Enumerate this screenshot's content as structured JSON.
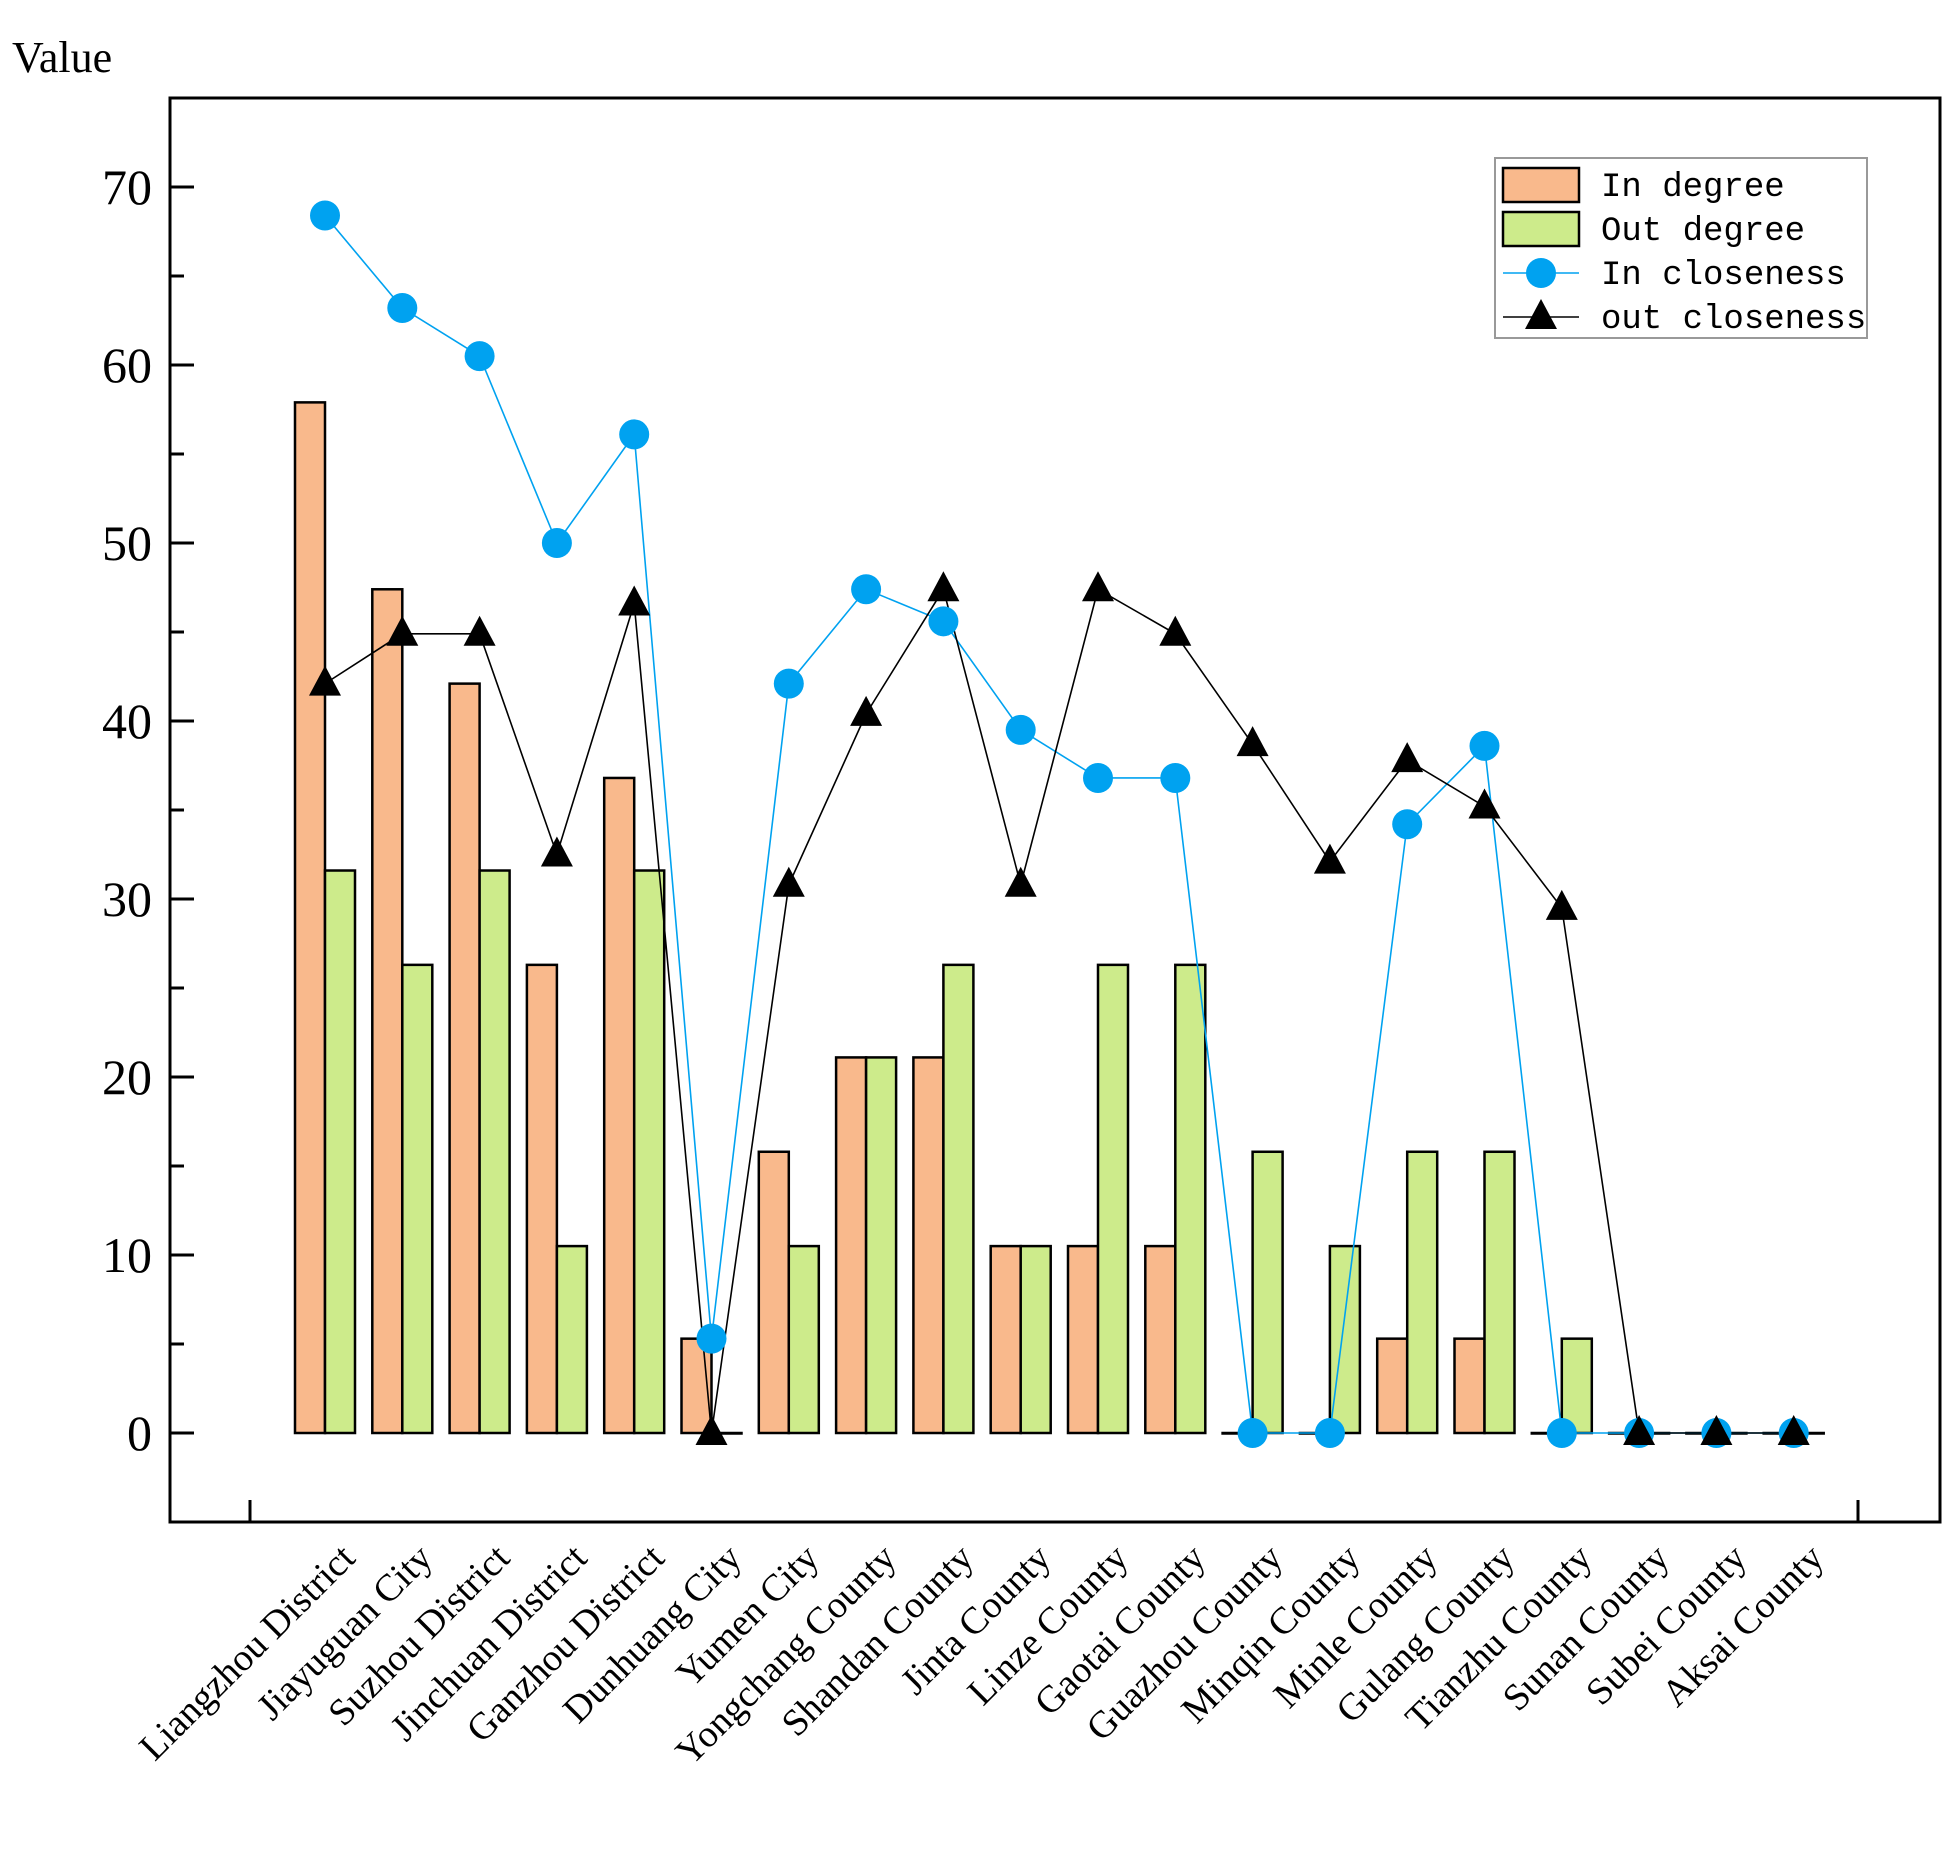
{
  "chart_data": {
    "type": "bar",
    "ylabel": "Value",
    "ylim": [
      -5,
      75
    ],
    "yticks": [
      "0",
      "10",
      "20",
      "30",
      "40",
      "50",
      "60",
      "70"
    ],
    "legend_position": "top-right",
    "categories": [
      "Liangzhou District",
      "Jiayuguan City",
      "Suzhou District",
      "Jinchuan District",
      "Ganzhou District",
      "Dunhuang City",
      "Yumen City",
      "Yongchang County",
      "Shandan County",
      "Jinta County",
      "Linze County",
      "Gaotai County",
      "Guazhou County",
      "Minqin County",
      "Minle County",
      "Gulang County",
      "Tianzhu County",
      "Sunan County",
      "Subei County",
      "Aksai County"
    ],
    "series": [
      {
        "name": "In degree",
        "kind": "bar",
        "color": "#F9B98C",
        "values": [
          57.9,
          47.4,
          42.1,
          26.3,
          36.8,
          5.3,
          15.8,
          21.1,
          21.1,
          10.5,
          10.5,
          10.5,
          0,
          0,
          5.3,
          5.3,
          0,
          0,
          0,
          0
        ]
      },
      {
        "name": "Out degree",
        "kind": "bar",
        "color": "#CDEB8B",
        "values": [
          31.6,
          26.3,
          31.6,
          10.5,
          31.6,
          0,
          10.5,
          21.1,
          26.3,
          10.5,
          26.3,
          26.3,
          15.8,
          10.5,
          15.8,
          15.8,
          5.3,
          0,
          0,
          0
        ]
      },
      {
        "name": "In closeness",
        "kind": "line",
        "marker": "circle",
        "color": "#00A2F0",
        "values": [
          68.4,
          63.2,
          60.5,
          50.0,
          56.1,
          5.3,
          42.1,
          47.4,
          45.6,
          39.5,
          36.8,
          36.8,
          0,
          0,
          34.2,
          38.6,
          0,
          0,
          0,
          0
        ]
      },
      {
        "name": "out closeness",
        "kind": "line",
        "marker": "triangle",
        "color": "#000000",
        "values": [
          42.1,
          44.9,
          44.9,
          32.5,
          46.6,
          0,
          30.8,
          40.4,
          47.4,
          30.8,
          47.4,
          44.9,
          38.7,
          32.1,
          37.8,
          35.2,
          29.5,
          0,
          0,
          0
        ]
      }
    ]
  }
}
